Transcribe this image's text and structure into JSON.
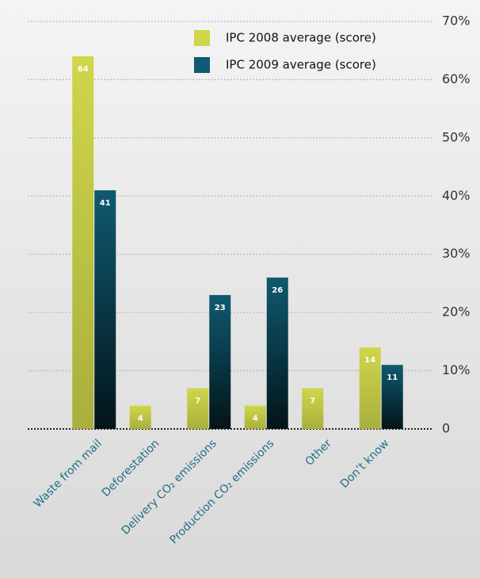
{
  "chart_data": {
    "type": "bar",
    "categories": [
      "Waste from mail",
      "Deforestation",
      "Delivery CO₂ emissions",
      "Production CO₂ emissions",
      "Other",
      "Don’t know"
    ],
    "series": [
      {
        "name": "IPC 2008 average (score)",
        "color": "#cfd64a",
        "values": [
          64,
          4,
          7,
          4,
          7,
          14
        ]
      },
      {
        "name": "IPC 2009 average (score)",
        "color": "#0f5a70",
        "values": [
          41,
          null,
          23,
          26,
          null,
          11
        ]
      }
    ],
    "ylim": [
      0,
      70
    ],
    "yticks": [
      0,
      {
        "value": 10,
        "label": "10%"
      },
      {
        "value": 20,
        "label": "20%"
      },
      {
        "value": 30,
        "label": "30%"
      },
      {
        "value": 40,
        "label": "40%"
      },
      {
        "value": 50,
        "label": "50%"
      },
      {
        "value": 60,
        "label": "60%"
      },
      {
        "value": 70,
        "label": "70%"
      }
    ],
    "grid": true,
    "legend": "top-right"
  }
}
